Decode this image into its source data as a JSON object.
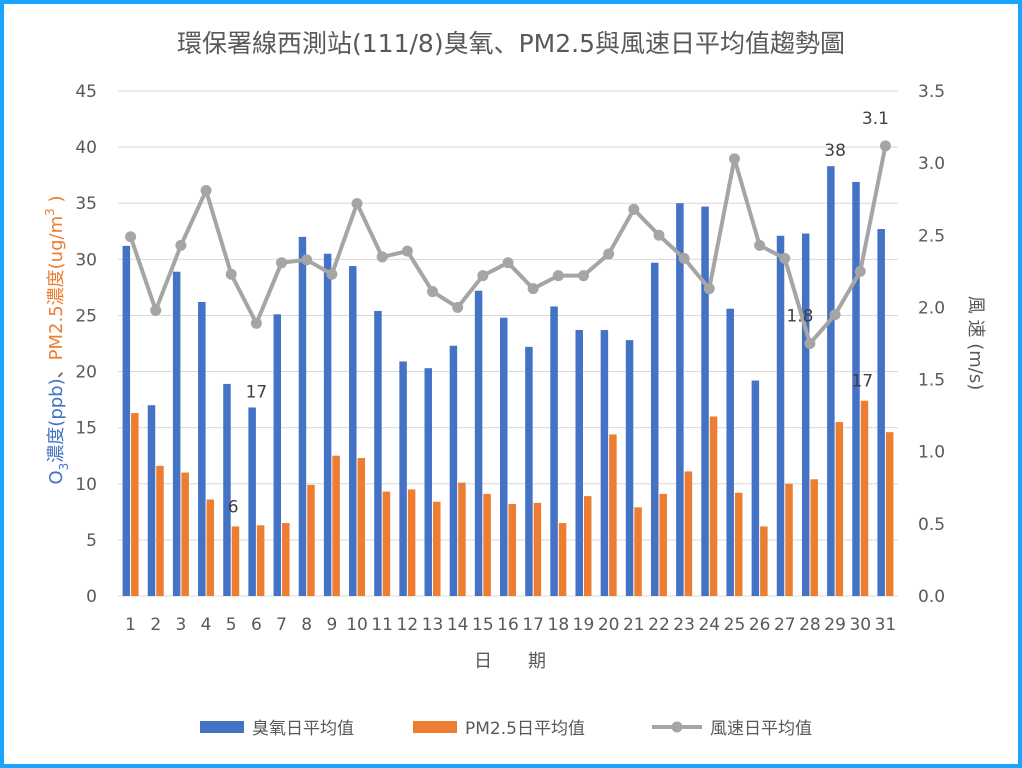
{
  "chart_data": {
    "type": "bar+line",
    "title": "環保署線西測站(111/8)臭氧、PM2.5與風速日平均值趨勢圖",
    "xlabel": "日　　期",
    "ylabel_left_parts": {
      "o3": "O",
      "o3_sub": "3",
      "o3_unit": "濃度(ppb)",
      "sep": "、",
      "pm": "PM2.5濃度(ug/m",
      "pm_sup": "3",
      "pm_close": " )"
    },
    "ylabel_right": "風 速 (m/s)",
    "categories": [
      "1",
      "2",
      "3",
      "4",
      "5",
      "6",
      "7",
      "8",
      "9",
      "10",
      "11",
      "12",
      "13",
      "14",
      "15",
      "16",
      "17",
      "18",
      "19",
      "20",
      "21",
      "22",
      "23",
      "24",
      "25",
      "26",
      "27",
      "28",
      "29",
      "30",
      "31"
    ],
    "y_left": {
      "min": 0,
      "max": 45,
      "ticks": [
        "0",
        "5",
        "10",
        "15",
        "20",
        "25",
        "30",
        "35",
        "40",
        "45"
      ]
    },
    "y_right": {
      "min": 0,
      "max": 3.5,
      "ticks": [
        "0.0",
        "0.5",
        "1.0",
        "1.5",
        "2.0",
        "2.5",
        "3.0",
        "3.5"
      ]
    },
    "grid": true,
    "legend_position": "bottom",
    "series": [
      {
        "name": "臭氧日平均值",
        "axis": "left",
        "kind": "bar",
        "color": "#4472c4",
        "values": [
          31.2,
          17.0,
          28.9,
          26.2,
          18.9,
          16.8,
          25.1,
          32.0,
          30.5,
          29.4,
          25.4,
          20.9,
          20.3,
          22.3,
          27.2,
          24.8,
          22.2,
          25.8,
          23.7,
          23.7,
          22.8,
          29.7,
          35.0,
          34.7,
          25.6,
          19.2,
          32.1,
          32.3,
          38.3,
          36.9,
          32.7
        ]
      },
      {
        "name": "PM2.5日平均值",
        "axis": "left",
        "kind": "bar",
        "color": "#ed7d31",
        "values": [
          16.3,
          11.6,
          11.0,
          8.6,
          6.2,
          6.3,
          6.5,
          9.9,
          12.5,
          12.3,
          9.3,
          9.5,
          8.4,
          10.1,
          9.1,
          8.2,
          8.3,
          6.5,
          8.9,
          14.4,
          7.9,
          9.1,
          11.1,
          16.0,
          9.2,
          6.2,
          10.0,
          10.4,
          15.5,
          17.4,
          14.6
        ]
      },
      {
        "name": "風速日平均值",
        "axis": "right",
        "kind": "line",
        "color": "#a5a5a5",
        "values": [
          2.49,
          1.98,
          2.43,
          2.81,
          2.23,
          1.89,
          2.31,
          2.33,
          2.23,
          2.72,
          2.35,
          2.39,
          2.11,
          2.0,
          2.22,
          2.31,
          2.13,
          2.22,
          2.22,
          2.37,
          2.68,
          2.5,
          2.34,
          2.13,
          3.03,
          2.43,
          2.34,
          1.75,
          1.95,
          2.25,
          3.12
        ]
      }
    ],
    "annotations": [
      {
        "text": "17",
        "series": 0,
        "index": 5
      },
      {
        "text": "6",
        "series": 1,
        "index": 4
      },
      {
        "text": "38",
        "series": 0,
        "index": 28
      },
      {
        "text": "17",
        "series": 1,
        "index": 29
      },
      {
        "text": "1.8",
        "series": 2,
        "index": 27
      },
      {
        "text": "3.1",
        "series": 2,
        "index": 30
      }
    ]
  }
}
